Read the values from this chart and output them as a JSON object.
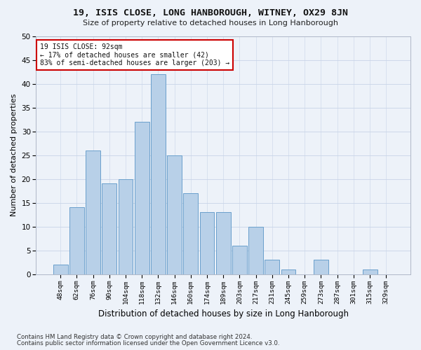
{
  "title": "19, ISIS CLOSE, LONG HANBOROUGH, WITNEY, OX29 8JN",
  "subtitle": "Size of property relative to detached houses in Long Hanborough",
  "xlabel": "Distribution of detached houses by size in Long Hanborough",
  "ylabel": "Number of detached properties",
  "bar_labels": [
    "48sqm",
    "62sqm",
    "76sqm",
    "90sqm",
    "104sqm",
    "118sqm",
    "132sqm",
    "146sqm",
    "160sqm",
    "174sqm",
    "189sqm",
    "203sqm",
    "217sqm",
    "231sqm",
    "245sqm",
    "259sqm",
    "273sqm",
    "287sqm",
    "301sqm",
    "315sqm",
    "329sqm"
  ],
  "bar_values": [
    2,
    14,
    26,
    19,
    20,
    32,
    42,
    25,
    17,
    13,
    13,
    6,
    10,
    3,
    1,
    0,
    3,
    0,
    0,
    1,
    0
  ],
  "bar_color": "#b8d0e8",
  "bar_edge_color": "#6aa0cc",
  "annotation_line1": "19 ISIS CLOSE: 92sqm",
  "annotation_line2": "← 17% of detached houses are smaller (42)",
  "annotation_line3": "83% of semi-detached houses are larger (203) →",
  "annotation_box_facecolor": "#ffffff",
  "annotation_box_edgecolor": "#cc0000",
  "ylim": [
    0,
    50
  ],
  "yticks": [
    0,
    5,
    10,
    15,
    20,
    25,
    30,
    35,
    40,
    45,
    50
  ],
  "footer1": "Contains HM Land Registry data © Crown copyright and database right 2024.",
  "footer2": "Contains public sector information licensed under the Open Government Licence v3.0.",
  "background_color": "#edf2f9",
  "grid_color": "#c8d4e8"
}
